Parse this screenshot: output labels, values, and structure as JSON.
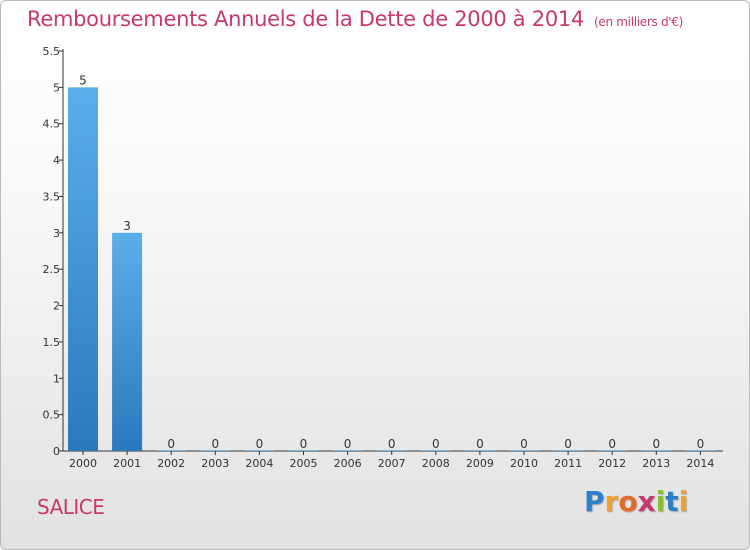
{
  "header": {
    "title": "Remboursements Annuels de la Dette de 2000 à 2014",
    "subtitle": "(en milliers d'€)"
  },
  "footer": {
    "commune": "SALICE",
    "brand_letters": [
      "P",
      "r",
      "o",
      "x",
      "i",
      "t",
      "i"
    ]
  },
  "colors": {
    "title": "#c8386f",
    "bar_top": "#5aaee9",
    "bar_bottom": "#2a79bd",
    "axis": "#333333"
  },
  "chart_data": {
    "type": "bar",
    "title": "Remboursements Annuels de la Dette de 2000 à 2014",
    "xlabel": "",
    "ylabel": "(en milliers d'€)",
    "categories": [
      "2000",
      "2001",
      "2002",
      "2003",
      "2004",
      "2005",
      "2006",
      "2007",
      "2008",
      "2009",
      "2010",
      "2011",
      "2012",
      "2013",
      "2014"
    ],
    "values": [
      5,
      3,
      0,
      0,
      0,
      0,
      0,
      0,
      0,
      0,
      0,
      0,
      0,
      0,
      0
    ],
    "value_labels": [
      "5",
      "3",
      "0",
      "0",
      "0",
      "0",
      "0",
      "0",
      "0",
      "0",
      "0",
      "0",
      "0",
      "0",
      "0"
    ],
    "ylim": [
      0,
      5.5
    ],
    "yticks": [
      0,
      0.5,
      1,
      1.5,
      2,
      2.5,
      3,
      3.5,
      4,
      4.5,
      5,
      5.5
    ],
    "ytick_labels": [
      "0",
      "0.5",
      "1",
      "1.5",
      "2",
      "2.5",
      "3",
      "3.5",
      "4",
      "4.5",
      "5",
      "5.5"
    ],
    "grid": false,
    "legend": "none"
  }
}
